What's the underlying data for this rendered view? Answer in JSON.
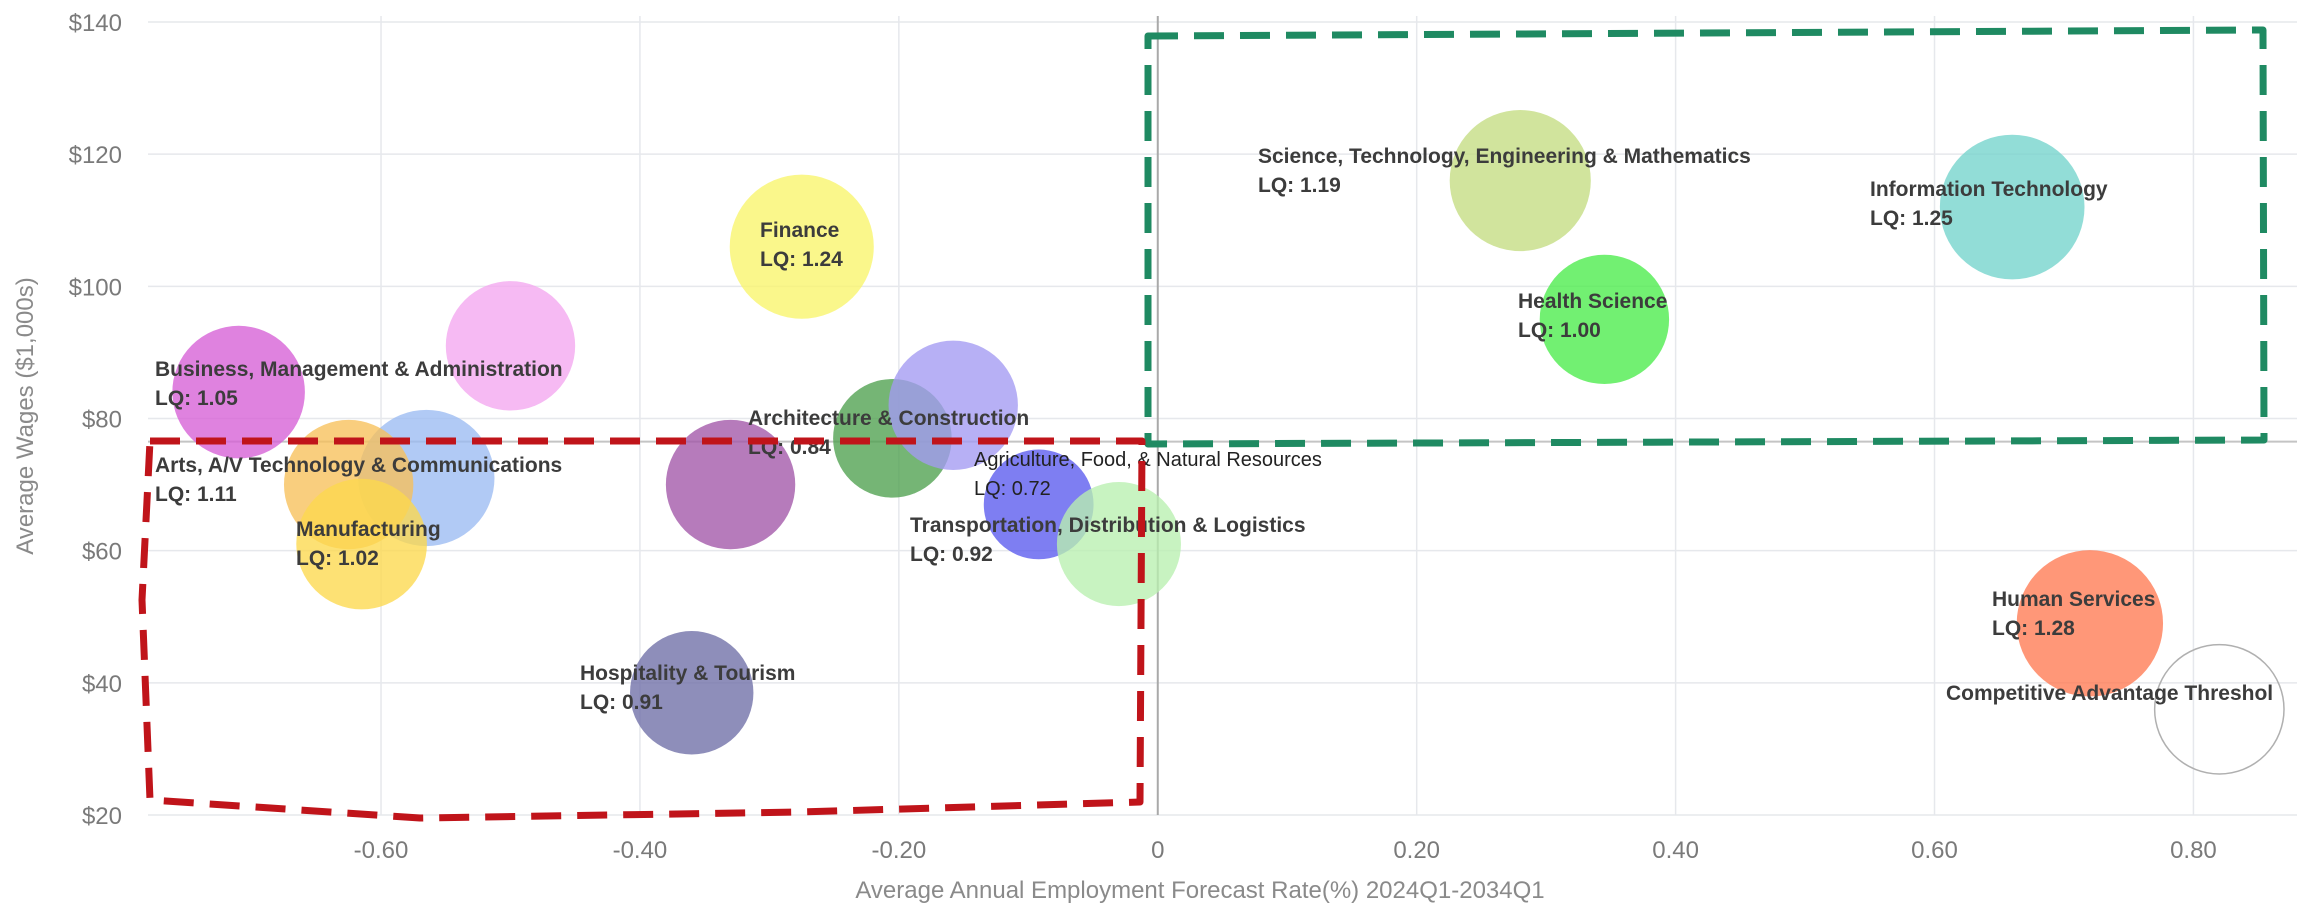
{
  "chart_data": {
    "type": "scatter",
    "subtype": "bubble",
    "title": "",
    "xlabel": "Average Annual Employment Forecast Rate(%) 2024Q1-2034Q1",
    "ylabel": "Average Wages ($1,000s)",
    "xlim": [
      -0.78,
      0.88
    ],
    "ylim": [
      20,
      140
    ],
    "x_ticks": [
      "-0.60",
      "-0.40",
      "-0.20",
      "0",
      "0.20",
      "0.40",
      "0.60",
      "0.80"
    ],
    "x_tick_values": [
      -0.6,
      -0.4,
      -0.2,
      0,
      0.2,
      0.4,
      0.6,
      0.8
    ],
    "y_ticks": [
      "$20",
      "$40",
      "$60",
      "$80",
      "$100",
      "$120",
      "$140"
    ],
    "y_tick_values": [
      20,
      40,
      60,
      80,
      100,
      120,
      140
    ],
    "grid": true,
    "points": [
      {
        "name": "Business, Management & Administration",
        "lq": "LQ: 1.05",
        "x": -0.71,
        "y": 84,
        "lq_value": 1.05,
        "color": "#d65fd6",
        "label": true
      },
      {
        "name": "",
        "lq": "",
        "x": -0.5,
        "y": 91,
        "lq_value": 1.0,
        "color": "#f3a6f0",
        "label": false
      },
      {
        "name": "Arts, A/V Technology & Communications",
        "lq": "LQ: 1.11",
        "x": -0.565,
        "y": 71,
        "lq_value": 1.11,
        "color": "#9bbbf2",
        "label": true
      },
      {
        "name": "",
        "lq": "",
        "x": -0.625,
        "y": 70,
        "lq_value": 1.0,
        "color": "#f7c05a",
        "label": false
      },
      {
        "name": "Manufacturing",
        "lq": "LQ: 1.02",
        "x": -0.615,
        "y": 61,
        "lq_value": 1.02,
        "color": "#fcd84d",
        "label": true
      },
      {
        "name": "Finance",
        "lq": "LQ: 1.24",
        "x": -0.275,
        "y": 106,
        "lq_value": 1.24,
        "color": "#f8f56a",
        "label": true
      },
      {
        "name": "",
        "lq": "",
        "x": -0.33,
        "y": 70,
        "lq_value": 1.0,
        "color": "#a256a8",
        "label": false
      },
      {
        "name": "Architecture & Construction",
        "lq": "LQ: 0.84",
        "x": -0.205,
        "y": 77,
        "lq_value": 0.84,
        "color": "#4ea04e",
        "label": true
      },
      {
        "name": "",
        "lq": "",
        "x": -0.158,
        "y": 82,
        "lq_value": 1.0,
        "color": "#a39af2",
        "label": false
      },
      {
        "name": "Agriculture, Food, & Natural Resources",
        "lq": "LQ: 0.72",
        "x": -0.092,
        "y": 67,
        "lq_value": 0.72,
        "color": "#5a5aee",
        "label": true
      },
      {
        "name": "Transportation, Distribution & Logistics",
        "lq": "LQ: 0.92",
        "x": -0.03,
        "y": 61,
        "lq_value": 0.92,
        "color": "#b8f0b0",
        "label": true
      },
      {
        "name": "Hospitality & Tourism",
        "lq": "LQ: 0.91",
        "x": -0.36,
        "y": 38.5,
        "lq_value": 0.91,
        "color": "#6e6ea6",
        "label": true
      },
      {
        "name": "Science, Technology, Engineering & Mathematics",
        "lq": "LQ: 1.19",
        "x": 0.28,
        "y": 116,
        "lq_value": 1.19,
        "color": "#c4dc82",
        "label": true
      },
      {
        "name": "Health Science",
        "lq": "LQ: 1.00",
        "x": 0.345,
        "y": 95,
        "lq_value": 1.0,
        "color": "#4aec4a",
        "label": true
      },
      {
        "name": "Information Technology",
        "lq": "LQ: 1.25",
        "x": 0.66,
        "y": 112,
        "lq_value": 1.25,
        "color": "#73d4cc",
        "label": true
      },
      {
        "name": "Human Services",
        "lq": "LQ: 1.28",
        "x": 0.72,
        "y": 49,
        "lq_value": 1.28,
        "color": "#ff7a52",
        "label": true
      },
      {
        "name": "Competitive Advantage Threshol",
        "lq": "",
        "x": 0.82,
        "y": 36,
        "lq_value": 1.0,
        "color": "none",
        "label": true,
        "outline": "#b0b0b0"
      }
    ],
    "reference_lines": {
      "x": 0,
      "y": 76.5
    },
    "highlight_regions": [
      {
        "name": "top-right",
        "color": "#1f8a62"
      },
      {
        "name": "bottom-left",
        "color": "#c0141a"
      }
    ]
  }
}
